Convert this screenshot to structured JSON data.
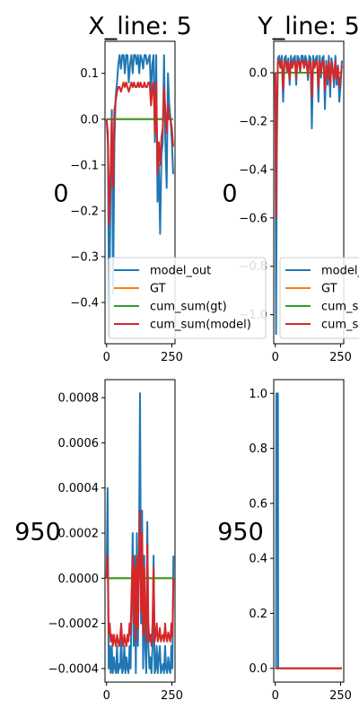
{
  "chart_data": [
    {
      "type": "line",
      "title": "X_line: 5",
      "row_label": "0",
      "xlim": [
        -6,
        262
      ],
      "ylim": [
        -0.49,
        0.17
      ],
      "xticks": [
        0,
        250
      ],
      "yticks": [
        0.1,
        0.0,
        -0.1,
        -0.2,
        -0.3,
        -0.4
      ],
      "ytick_labels": [
        "0.1",
        "0.0",
        "−0.1",
        "−0.2",
        "−0.3",
        "−0.4"
      ],
      "legend": {
        "placement": "lower-right",
        "entries": [
          "model_out",
          "GT",
          "cum_sum(gt)",
          "cum_sum(model)"
        ]
      },
      "series": [
        {
          "name": "model_out",
          "color": "#1f77b4",
          "x": [
            0,
            5,
            10,
            15,
            20,
            25,
            30,
            35,
            40,
            45,
            50,
            55,
            60,
            65,
            70,
            75,
            80,
            85,
            90,
            95,
            100,
            105,
            110,
            115,
            120,
            125,
            130,
            135,
            140,
            145,
            150,
            155,
            160,
            165,
            170,
            175,
            180,
            185,
            190,
            195,
            200,
            205,
            210,
            215,
            220,
            225,
            230,
            235,
            240,
            245,
            250,
            255
          ],
          "y": [
            0.0,
            -0.05,
            -0.47,
            -0.15,
            0.02,
            -0.38,
            -0.05,
            0.05,
            0.08,
            0.12,
            0.14,
            0.11,
            0.14,
            0.14,
            0.1,
            0.14,
            0.14,
            0.08,
            0.12,
            0.14,
            0.1,
            0.14,
            0.14,
            0.12,
            0.14,
            0.1,
            0.14,
            0.13,
            0.11,
            0.14,
            0.14,
            0.12,
            0.13,
            0.14,
            0.05,
            0.12,
            0.14,
            -0.05,
            0.14,
            -0.18,
            -0.1,
            -0.25,
            -0.08,
            -0.05,
            0.14,
            -0.05,
            -0.15,
            0.1,
            0.03,
            0.0,
            -0.05,
            -0.12
          ]
        },
        {
          "name": "GT",
          "color": "#ff7f0e",
          "x": [
            0,
            255
          ],
          "y": [
            0.0,
            0.0
          ]
        },
        {
          "name": "cum_sum(gt)",
          "color": "#2ca02c",
          "x": [
            0,
            255
          ],
          "y": [
            0.0,
            0.0
          ]
        },
        {
          "name": "cum_sum(model)",
          "color": "#d62728",
          "x": [
            0,
            5,
            10,
            15,
            20,
            25,
            30,
            35,
            40,
            45,
            50,
            55,
            60,
            65,
            70,
            75,
            80,
            85,
            90,
            95,
            100,
            105,
            110,
            115,
            120,
            125,
            130,
            135,
            140,
            145,
            150,
            155,
            160,
            165,
            170,
            175,
            180,
            185,
            190,
            195,
            200,
            205,
            210,
            215,
            220,
            225,
            230,
            235,
            240,
            245,
            250,
            255
          ],
          "y": [
            0.0,
            -0.03,
            -0.23,
            -0.12,
            0.0,
            -0.15,
            0.02,
            0.04,
            0.06,
            0.07,
            0.07,
            0.06,
            0.07,
            0.08,
            0.07,
            0.08,
            0.07,
            0.06,
            0.07,
            0.08,
            0.07,
            0.08,
            0.07,
            0.07,
            0.08,
            0.07,
            0.08,
            0.07,
            0.07,
            0.08,
            0.07,
            0.07,
            0.08,
            0.08,
            0.03,
            0.06,
            0.08,
            -0.03,
            0.08,
            -0.12,
            -0.05,
            -0.1,
            -0.04,
            -0.02,
            0.07,
            0.02,
            -0.03,
            0.03,
            0.0,
            0.0,
            -0.02,
            -0.06
          ]
        }
      ]
    },
    {
      "type": "line",
      "title": "Y_line: 5",
      "row_label": "0",
      "xlim": [
        -6,
        262
      ],
      "ylim": [
        -1.12,
        0.13
      ],
      "xticks": [
        0,
        250
      ],
      "yticks": [
        0.0,
        -0.2,
        -0.4,
        -0.6,
        -0.8,
        -1.0
      ],
      "ytick_labels": [
        "0.0",
        "−0.2",
        "−0.4",
        "−0.6",
        "−0.8",
        "−1.0"
      ],
      "legend": {
        "placement": "lower-right",
        "entries": [
          "model_out",
          "GT",
          "cum_sum(gt)",
          "cum_sum(model)"
        ]
      },
      "series": [
        {
          "name": "model_out",
          "color": "#1f77b4",
          "x": [
            0,
            3,
            6,
            10,
            15,
            20,
            25,
            30,
            35,
            40,
            45,
            50,
            55,
            60,
            65,
            70,
            75,
            80,
            85,
            90,
            95,
            100,
            105,
            110,
            115,
            120,
            125,
            130,
            135,
            140,
            145,
            150,
            155,
            160,
            165,
            170,
            175,
            180,
            185,
            190,
            195,
            200,
            205,
            210,
            215,
            220,
            225,
            230,
            235,
            240,
            245,
            250,
            255
          ],
          "y": [
            0.0,
            -1.08,
            -0.3,
            0.06,
            0.07,
            0.02,
            0.07,
            -0.12,
            0.06,
            0.07,
            0.0,
            0.06,
            -0.05,
            0.07,
            0.02,
            0.06,
            0.07,
            -0.05,
            0.07,
            0.06,
            0.0,
            0.07,
            0.07,
            0.02,
            0.07,
            0.05,
            -0.03,
            0.07,
            0.06,
            -0.23,
            0.07,
            0.02,
            0.06,
            0.07,
            -0.12,
            0.07,
            -0.02,
            0.06,
            0.07,
            -0.15,
            0.05,
            -0.05,
            0.07,
            -0.1,
            0.06,
            0.02,
            -0.06,
            0.07,
            -0.05,
            0.03,
            -0.12,
            -0.05,
            0.05
          ]
        },
        {
          "name": "GT",
          "color": "#ff7f0e",
          "x": [
            0,
            255
          ],
          "y": [
            0.0,
            0.0
          ]
        },
        {
          "name": "cum_sum(gt)",
          "color": "#2ca02c",
          "x": [
            0,
            255
          ],
          "y": [
            0.0,
            0.0
          ]
        },
        {
          "name": "cum_sum(model)",
          "color": "#d62728",
          "x": [
            0,
            3,
            6,
            10,
            15,
            20,
            25,
            30,
            35,
            40,
            45,
            50,
            55,
            60,
            65,
            70,
            75,
            80,
            85,
            90,
            95,
            100,
            105,
            110,
            115,
            120,
            125,
            130,
            135,
            140,
            145,
            150,
            155,
            160,
            165,
            170,
            175,
            180,
            185,
            190,
            195,
            200,
            205,
            210,
            215,
            220,
            225,
            230,
            235,
            240,
            245,
            250,
            255
          ],
          "y": [
            0.0,
            -0.6,
            -0.15,
            0.04,
            0.05,
            0.02,
            0.05,
            -0.07,
            0.04,
            0.05,
            0.01,
            0.04,
            -0.03,
            0.05,
            0.02,
            0.04,
            0.05,
            -0.02,
            0.05,
            0.04,
            0.01,
            0.05,
            0.05,
            0.02,
            0.05,
            0.03,
            -0.01,
            0.05,
            0.04,
            -0.1,
            0.05,
            0.02,
            0.04,
            0.05,
            -0.06,
            0.05,
            0.0,
            0.04,
            0.05,
            -0.07,
            0.03,
            -0.02,
            0.05,
            -0.05,
            0.04,
            0.01,
            -0.03,
            0.05,
            -0.02,
            0.02,
            -0.06,
            -0.02,
            0.03
          ]
        }
      ]
    },
    {
      "type": "line",
      "title": "",
      "row_label": "950",
      "xlim": [
        -6,
        262
      ],
      "ylim": [
        -0.00046,
        0.00088
      ],
      "xticks": [
        0,
        250
      ],
      "yticks": [
        0.0008,
        0.0006,
        0.0004,
        0.0002,
        0.0,
        -0.0002,
        -0.0004
      ],
      "ytick_labels": [
        "0.0008",
        "0.0006",
        "0.0004",
        "0.0002",
        "0.0000",
        "−0.0002",
        "−0.0004"
      ],
      "series": [
        {
          "name": "model_out",
          "color": "#1f77b4",
          "x": [
            0,
            4,
            8,
            12,
            16,
            20,
            24,
            28,
            32,
            36,
            40,
            44,
            48,
            52,
            56,
            60,
            64,
            68,
            72,
            76,
            80,
            84,
            88,
            92,
            96,
            100,
            104,
            108,
            112,
            116,
            120,
            124,
            128,
            132,
            136,
            140,
            144,
            148,
            152,
            156,
            160,
            164,
            168,
            172,
            176,
            180,
            184,
            188,
            192,
            196,
            200,
            204,
            208,
            212,
            216,
            220,
            224,
            228,
            232,
            236,
            240,
            244,
            248,
            252,
            256
          ],
          "y": [
            0.0,
            0.0004,
            -0.0004,
            -0.0003,
            -0.00042,
            -0.0003,
            -0.00042,
            -0.00035,
            -0.0004,
            -0.00042,
            -0.0003,
            -0.00042,
            -0.00038,
            -0.0004,
            -0.00025,
            -0.00042,
            -0.0004,
            -0.0003,
            -0.00042,
            -0.00035,
            -0.0004,
            -0.00042,
            -0.0003,
            -0.0004,
            -0.0001,
            0.0002,
            -0.0003,
            0.0001,
            -0.00042,
            0.0002,
            -0.0003,
            0.0001,
            0.00082,
            -0.0002,
            0.0003,
            -0.0004,
            0.0001,
            -0.0003,
            -0.00042,
            0.00025,
            -0.0003,
            -0.0004,
            -0.00035,
            -0.00042,
            -0.0003,
            0.0001,
            -0.00042,
            -0.0004,
            -0.0003,
            -0.00042,
            -0.00035,
            -0.0003,
            -0.00042,
            -0.0004,
            -0.00038,
            -0.00042,
            -0.0003,
            -0.0004,
            -0.00042,
            -0.00035,
            -0.0004,
            -0.00042,
            -0.0003,
            -0.0004,
            0.0001
          ]
        },
        {
          "name": "GT",
          "color": "#ff7f0e",
          "x": [
            0,
            256
          ],
          "y": [
            0.0,
            0.0
          ]
        },
        {
          "name": "cum_sum(gt)",
          "color": "#2ca02c",
          "x": [
            0,
            256
          ],
          "y": [
            0.0,
            0.0
          ]
        },
        {
          "name": "cum_sum(model)",
          "color": "#d62728",
          "x": [
            0,
            4,
            8,
            12,
            16,
            20,
            24,
            28,
            32,
            36,
            40,
            44,
            48,
            52,
            56,
            60,
            64,
            68,
            72,
            76,
            80,
            84,
            88,
            92,
            96,
            100,
            104,
            108,
            112,
            116,
            120,
            124,
            128,
            132,
            136,
            140,
            144,
            148,
            152,
            156,
            160,
            164,
            168,
            172,
            176,
            180,
            184,
            188,
            192,
            196,
            200,
            204,
            208,
            212,
            216,
            220,
            224,
            228,
            232,
            236,
            240,
            244,
            248,
            252,
            256
          ],
          "y": [
            0.0,
            0.0001,
            -0.00025,
            -0.0002,
            -0.00028,
            -0.00025,
            -0.0003,
            -0.00025,
            -0.00028,
            -0.0003,
            -0.00025,
            -0.00028,
            -0.0003,
            -0.00026,
            -0.0002,
            -0.00028,
            -0.0003,
            -0.00025,
            -0.00028,
            -0.0003,
            -0.00025,
            -0.00028,
            -0.0002,
            -0.00025,
            -5e-05,
            0.0001,
            -0.0002,
            5e-05,
            -0.00028,
            0.0001,
            -0.00022,
            5e-05,
            0.0003,
            -0.00015,
            0.0002,
            -0.00025,
            5e-05,
            -0.0002,
            -0.00028,
            0.00015,
            -0.0002,
            -0.00028,
            -0.00025,
            -0.0003,
            -0.0002,
            5e-05,
            -0.00028,
            -0.00025,
            -0.0002,
            -0.00028,
            -0.00026,
            -0.00022,
            -0.00028,
            -0.00026,
            -0.00025,
            -0.00028,
            -0.0002,
            -0.00026,
            -0.00028,
            -0.00024,
            -0.00026,
            -0.00028,
            -0.0002,
            -0.00026,
            0.0
          ]
        }
      ]
    },
    {
      "type": "line",
      "title": "",
      "row_label": "950",
      "xlim": [
        -6,
        262
      ],
      "ylim": [
        -0.05,
        1.05
      ],
      "xticks": [
        0,
        250
      ],
      "yticks": [
        1.0,
        0.8,
        0.6,
        0.4,
        0.2,
        0.0
      ],
      "ytick_labels": [
        "1.0",
        "0.8",
        "0.6",
        "0.4",
        "0.2",
        "0.0"
      ],
      "series": [
        {
          "name": "model_out",
          "color": "#1f77b4",
          "x": [
            0,
            3,
            4,
            10,
            11,
            255
          ],
          "y": [
            0.0,
            0.0,
            1.0,
            1.0,
            0.0,
            0.0
          ]
        },
        {
          "name": "GT",
          "color": "#ff7f0e",
          "x": [
            0,
            255
          ],
          "y": [
            0.0,
            0.0
          ]
        },
        {
          "name": "cum_sum(gt)",
          "color": "#2ca02c",
          "x": [
            0,
            255
          ],
          "y": [
            0.0,
            0.0
          ]
        },
        {
          "name": "cum_sum(model)",
          "color": "#d62728",
          "x": [
            0,
            255
          ],
          "y": [
            0.0,
            0.0
          ]
        }
      ]
    }
  ]
}
